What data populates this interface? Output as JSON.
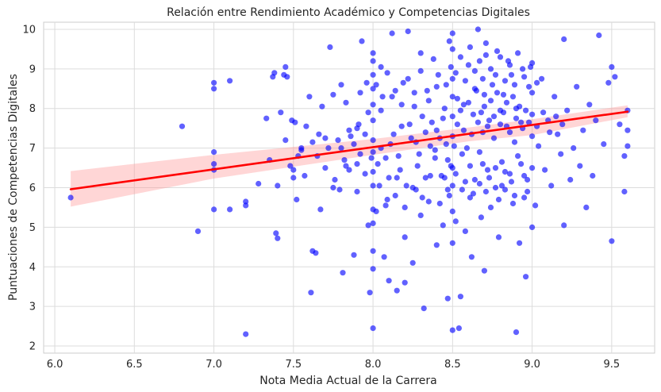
{
  "chart_data": {
    "type": "scatter",
    "title": "Relación entre Rendimiento Académico y Competencias Digitales",
    "xlabel": "Nota Media Actual de la Carrera",
    "ylabel": "Puntuaciones de Competencias Digitales",
    "xlim": [
      5.93,
      9.77
    ],
    "ylim": [
      1.82,
      10.18
    ],
    "xticks": [
      6.0,
      6.5,
      7.0,
      7.5,
      8.0,
      8.5,
      9.0,
      9.5
    ],
    "xtick_labels": [
      "6.0",
      "6.5",
      "7.0",
      "7.5",
      "8.0",
      "8.5",
      "9.0",
      "9.5"
    ],
    "yticks": [
      2,
      3,
      4,
      5,
      6,
      7,
      8,
      9,
      10
    ],
    "ytick_labels": [
      "2",
      "3",
      "4",
      "5",
      "6",
      "7",
      "8",
      "9",
      "10"
    ],
    "grid": true,
    "background": "#ffffff",
    "colors": {
      "points": "#0000ff",
      "regression_line": "#ff0000",
      "confidence_band": "#ff9999",
      "grid": "#dcdcdc",
      "frame": "#cccccc"
    },
    "regression": {
      "x": [
        6.1,
        9.6
      ],
      "y": [
        5.96,
        7.92
      ]
    },
    "confidence_band": {
      "x": [
        6.1,
        7.0,
        8.0,
        8.6,
        9.0,
        9.6
      ],
      "upper": [
        6.42,
        6.83,
        7.23,
        7.52,
        7.73,
        8.08
      ],
      "lower": [
        5.52,
        6.23,
        6.83,
        7.17,
        7.33,
        7.78
      ]
    },
    "points": [
      [
        6.1,
        5.75
      ],
      [
        6.8,
        7.55
      ],
      [
        6.9,
        4.9
      ],
      [
        7.0,
        8.65
      ],
      [
        7.0,
        8.5
      ],
      [
        7.0,
        6.9
      ],
      [
        7.0,
        6.6
      ],
      [
        7.0,
        6.45
      ],
      [
        7.0,
        5.45
      ],
      [
        7.1,
        8.7
      ],
      [
        7.1,
        5.45
      ],
      [
        7.2,
        2.3
      ],
      [
        7.2,
        5.55
      ],
      [
        7.2,
        5.65
      ],
      [
        7.28,
        6.1
      ],
      [
        7.33,
        7.75
      ],
      [
        7.35,
        6.7
      ],
      [
        7.37,
        8.8
      ],
      [
        7.38,
        8.9
      ],
      [
        7.39,
        4.85
      ],
      [
        7.4,
        4.72
      ],
      [
        7.4,
        6.05
      ],
      [
        7.42,
        7.9
      ],
      [
        7.44,
        8.85
      ],
      [
        7.45,
        9.05
      ],
      [
        7.46,
        8.8
      ],
      [
        7.49,
        7.7
      ],
      [
        7.5,
        6.45
      ],
      [
        7.5,
        6.25
      ],
      [
        7.51,
        7.65
      ],
      [
        7.52,
        5.7
      ],
      [
        7.53,
        6.8
      ],
      [
        7.55,
        6.95
      ],
      [
        7.57,
        6.3
      ],
      [
        7.58,
        7.55
      ],
      [
        7.6,
        8.3
      ],
      [
        7.61,
        3.35
      ],
      [
        7.62,
        4.4
      ],
      [
        7.64,
        4.35
      ],
      [
        7.65,
        6.8
      ],
      [
        7.66,
        7.35
      ],
      [
        7.67,
        5.45
      ],
      [
        7.68,
        8.05
      ],
      [
        7.7,
        7.25
      ],
      [
        7.72,
        7.0
      ],
      [
        7.73,
        9.55
      ],
      [
        7.75,
        6.0
      ],
      [
        7.76,
        6.2
      ],
      [
        7.78,
        7.2
      ],
      [
        7.79,
        5.95
      ],
      [
        7.8,
        8.6
      ],
      [
        7.81,
        3.85
      ],
      [
        7.82,
        6.7
      ],
      [
        7.83,
        8.15
      ],
      [
        7.85,
        6.45
      ],
      [
        7.86,
        7.3
      ],
      [
        7.88,
        4.3
      ],
      [
        7.9,
        5.9
      ],
      [
        7.9,
        6.6
      ],
      [
        7.91,
        7.6
      ],
      [
        7.92,
        8.4
      ],
      [
        7.93,
        9.7
      ],
      [
        7.95,
        6.35
      ],
      [
        7.96,
        8.65
      ],
      [
        7.97,
        5.05
      ],
      [
        7.98,
        3.35
      ],
      [
        8.0,
        2.45
      ],
      [
        8.0,
        3.95
      ],
      [
        8.0,
        4.4
      ],
      [
        8.0,
        5.1
      ],
      [
        8.0,
        5.45
      ],
      [
        8.0,
        6.05
      ],
      [
        8.0,
        6.4
      ],
      [
        8.0,
        6.9
      ],
      [
        8.0,
        7.2
      ],
      [
        8.0,
        7.7
      ],
      [
        8.0,
        8.1
      ],
      [
        8.0,
        8.5
      ],
      [
        8.0,
        8.85
      ],
      [
        8.0,
        9.2
      ],
      [
        8.0,
        9.4
      ],
      [
        8.02,
        5.4
      ],
      [
        8.03,
        6.6
      ],
      [
        8.05,
        7.95
      ],
      [
        8.05,
        9.05
      ],
      [
        8.07,
        4.25
      ],
      [
        8.08,
        5.55
      ],
      [
        8.1,
        3.65
      ],
      [
        8.1,
        6.25
      ],
      [
        8.11,
        7.1
      ],
      [
        8.12,
        8.3
      ],
      [
        8.12,
        9.9
      ],
      [
        8.14,
        5.8
      ],
      [
        8.15,
        3.4
      ],
      [
        8.16,
        6.8
      ],
      [
        8.18,
        7.55
      ],
      [
        8.19,
        8.65
      ],
      [
        8.2,
        3.6
      ],
      [
        8.2,
        4.75
      ],
      [
        8.21,
        6.05
      ],
      [
        8.22,
        9.95
      ],
      [
        8.24,
        7.25
      ],
      [
        8.25,
        4.1
      ],
      [
        8.26,
        8.05
      ],
      [
        8.27,
        5.95
      ],
      [
        8.28,
        6.55
      ],
      [
        8.3,
        5.3
      ],
      [
        8.3,
        9.4
      ],
      [
        8.31,
        7.8
      ],
      [
        8.32,
        2.95
      ],
      [
        8.33,
        6.25
      ],
      [
        8.34,
        8.45
      ],
      [
        8.35,
        5.65
      ],
      [
        8.36,
        7.05
      ],
      [
        8.38,
        9.25
      ],
      [
        8.39,
        6.75
      ],
      [
        8.4,
        4.55
      ],
      [
        8.4,
        7.45
      ],
      [
        8.41,
        8.85
      ],
      [
        8.43,
        6.3
      ],
      [
        8.44,
        5.05
      ],
      [
        8.45,
        8.0
      ],
      [
        8.46,
        7.1
      ],
      [
        8.47,
        3.2
      ],
      [
        8.48,
        9.7
      ],
      [
        8.49,
        6.55
      ],
      [
        8.5,
        2.4
      ],
      [
        8.5,
        4.6
      ],
      [
        8.5,
        5.4
      ],
      [
        8.5,
        6.05
      ],
      [
        8.5,
        6.5
      ],
      [
        8.5,
        7.3
      ],
      [
        8.5,
        7.8
      ],
      [
        8.5,
        8.3
      ],
      [
        8.5,
        8.75
      ],
      [
        8.5,
        9.5
      ],
      [
        8.5,
        9.9
      ],
      [
        8.52,
        5.15
      ],
      [
        8.53,
        7.6
      ],
      [
        8.54,
        2.45
      ],
      [
        8.55,
        3.25
      ],
      [
        8.56,
        6.85
      ],
      [
        8.57,
        8.1
      ],
      [
        8.58,
        4.9
      ],
      [
        8.59,
        7.0
      ],
      [
        8.6,
        9.1
      ],
      [
        8.61,
        5.75
      ],
      [
        8.62,
        4.25
      ],
      [
        8.63,
        7.85
      ],
      [
        8.64,
        6.2
      ],
      [
        8.65,
        8.45
      ],
      [
        8.66,
        10.0
      ],
      [
        8.67,
        6.9
      ],
      [
        8.68,
        5.25
      ],
      [
        8.69,
        7.4
      ],
      [
        8.7,
        3.9
      ],
      [
        8.7,
        8.05
      ],
      [
        8.71,
        9.35
      ],
      [
        8.72,
        6.45
      ],
      [
        8.73,
        7.7
      ],
      [
        8.74,
        5.5
      ],
      [
        8.75,
        8.6
      ],
      [
        8.76,
        7.25
      ],
      [
        8.77,
        6.0
      ],
      [
        8.78,
        9.45
      ],
      [
        8.79,
        4.75
      ],
      [
        8.8,
        7.95
      ],
      [
        8.81,
        6.65
      ],
      [
        8.82,
        8.35
      ],
      [
        8.83,
        5.95
      ],
      [
        8.84,
        7.55
      ],
      [
        8.85,
        9.2
      ],
      [
        8.86,
        6.35
      ],
      [
        8.87,
        8.85
      ],
      [
        8.88,
        5.6
      ],
      [
        8.89,
        7.15
      ],
      [
        8.9,
        2.35
      ],
      [
        8.9,
        8.0
      ],
      [
        8.91,
        6.8
      ],
      [
        8.92,
        4.6
      ],
      [
        8.93,
        7.65
      ],
      [
        8.94,
        9.0
      ],
      [
        8.95,
        5.75
      ],
      [
        8.96,
        3.75
      ],
      [
        8.97,
        6.2
      ],
      [
        8.98,
        8.55
      ],
      [
        9.0,
        5.0
      ],
      [
        9.0,
        6.5
      ],
      [
        9.0,
        7.3
      ],
      [
        9.0,
        7.85
      ],
      [
        9.0,
        8.4
      ],
      [
        9.0,
        9.15
      ],
      [
        9.02,
        5.55
      ],
      [
        9.04,
        7.05
      ],
      [
        9.06,
        8.75
      ],
      [
        9.08,
        6.45
      ],
      [
        9.1,
        7.7
      ],
      [
        9.12,
        6.05
      ],
      [
        9.14,
        8.3
      ],
      [
        9.16,
        7.35
      ],
      [
        9.18,
        6.85
      ],
      [
        9.2,
        9.75
      ],
      [
        9.2,
        5.05
      ],
      [
        9.22,
        7.95
      ],
      [
        9.24,
        6.2
      ],
      [
        9.26,
        7.0
      ],
      [
        9.28,
        8.55
      ],
      [
        9.3,
        6.55
      ],
      [
        9.32,
        7.45
      ],
      [
        9.34,
        5.5
      ],
      [
        9.36,
        8.1
      ],
      [
        9.38,
        6.3
      ],
      [
        9.4,
        7.7
      ],
      [
        9.42,
        9.85
      ],
      [
        9.45,
        7.1
      ],
      [
        9.48,
        8.65
      ],
      [
        9.5,
        4.65
      ],
      [
        9.5,
        9.05
      ],
      [
        9.52,
        8.8
      ],
      [
        9.55,
        7.6
      ],
      [
        9.58,
        5.9
      ],
      [
        9.58,
        6.8
      ],
      [
        9.6,
        7.45
      ],
      [
        9.6,
        7.95
      ],
      [
        9.6,
        7.05
      ],
      [
        8.05,
        7.0
      ],
      [
        8.08,
        6.75
      ],
      [
        8.13,
        7.35
      ],
      [
        8.17,
        6.45
      ],
      [
        8.23,
        7.6
      ],
      [
        8.27,
        7.15
      ],
      [
        8.29,
        6.85
      ],
      [
        8.33,
        7.4
      ],
      [
        8.37,
        7.65
      ],
      [
        8.39,
        6.95
      ],
      [
        8.42,
        7.25
      ],
      [
        8.44,
        7.75
      ],
      [
        8.47,
        6.7
      ],
      [
        8.51,
        7.05
      ],
      [
        8.53,
        8.25
      ],
      [
        8.55,
        7.95
      ],
      [
        8.57,
        7.45
      ],
      [
        8.6,
        8.15
      ],
      [
        8.62,
        7.35
      ],
      [
        8.64,
        8.5
      ],
      [
        8.66,
        7.65
      ],
      [
        8.68,
        7.9
      ],
      [
        8.7,
        8.35
      ],
      [
        8.72,
        7.55
      ],
      [
        8.74,
        8.2
      ],
      [
        8.76,
        7.8
      ],
      [
        8.78,
        8.4
      ],
      [
        8.8,
        7.6
      ],
      [
        8.82,
        7.9
      ],
      [
        8.84,
        8.15
      ],
      [
        8.86,
        7.4
      ],
      [
        8.88,
        8.3
      ],
      [
        8.9,
        7.75
      ],
      [
        8.92,
        8.05
      ],
      [
        8.94,
        7.5
      ],
      [
        8.96,
        7.95
      ],
      [
        8.98,
        7.65
      ],
      [
        9.03,
        7.55
      ],
      [
        9.07,
        7.9
      ],
      [
        9.11,
        7.4
      ],
      [
        9.15,
        7.8
      ],
      [
        9.19,
        7.6
      ],
      [
        8.45,
        6.25
      ],
      [
        8.48,
        5.8
      ],
      [
        8.52,
        6.35
      ],
      [
        8.56,
        5.95
      ],
      [
        8.58,
        6.15
      ],
      [
        8.61,
        6.55
      ],
      [
        8.63,
        5.85
      ],
      [
        8.67,
        6.1
      ],
      [
        8.69,
        6.6
      ],
      [
        8.71,
        5.9
      ],
      [
        8.73,
        6.25
      ],
      [
        8.77,
        6.5
      ],
      [
        8.79,
        5.7
      ],
      [
        8.81,
        6.05
      ],
      [
        8.83,
        6.4
      ],
      [
        8.87,
        6.15
      ],
      [
        8.89,
        5.8
      ],
      [
        8.93,
        6.6
      ],
      [
        8.95,
        6.3
      ],
      [
        8.97,
        5.9
      ],
      [
        8.46,
        8.6
      ],
      [
        8.49,
        9.05
      ],
      [
        8.52,
        8.9
      ],
      [
        8.55,
        9.3
      ],
      [
        8.58,
        8.7
      ],
      [
        8.61,
        9.55
      ],
      [
        8.64,
        8.95
      ],
      [
        8.67,
        9.2
      ],
      [
        8.69,
        8.75
      ],
      [
        8.71,
        9.65
      ],
      [
        8.74,
        9.0
      ],
      [
        8.77,
        8.85
      ],
      [
        8.8,
        9.3
      ],
      [
        8.83,
        8.7
      ],
      [
        8.86,
        9.1
      ],
      [
        8.89,
        8.6
      ],
      [
        8.91,
        9.4
      ],
      [
        8.95,
        8.8
      ],
      [
        8.99,
        9.05
      ],
      [
        9.03,
        8.65
      ],
      [
        8.02,
        8.6
      ],
      [
        8.06,
        8.3
      ],
      [
        8.09,
        8.9
      ],
      [
        8.14,
        8.45
      ],
      [
        8.18,
        8.1
      ],
      [
        8.22,
        8.75
      ],
      [
        8.26,
        8.4
      ],
      [
        8.3,
        8.95
      ],
      [
        8.35,
        8.2
      ],
      [
        8.4,
        8.55
      ],
      [
        8.04,
        6.05
      ],
      [
        8.09,
        5.7
      ],
      [
        8.15,
        6.25
      ],
      [
        8.2,
        5.5
      ],
      [
        8.25,
        6.0
      ],
      [
        8.31,
        5.75
      ],
      [
        8.36,
        6.3
      ],
      [
        8.42,
        5.6
      ],
      [
        8.47,
        5.95
      ],
      [
        7.88,
        7.1
      ],
      [
        7.9,
        7.5
      ],
      [
        7.92,
        6.85
      ],
      [
        7.95,
        7.35
      ],
      [
        7.97,
        7.9
      ],
      [
        7.99,
        6.75
      ],
      [
        7.8,
        7.0
      ],
      [
        7.83,
        6.55
      ],
      [
        7.85,
        7.45
      ],
      [
        7.75,
        8.35
      ],
      [
        7.7,
        6.5
      ],
      [
        7.62,
        7.15
      ],
      [
        7.55,
        7.0
      ],
      [
        7.48,
        6.55
      ],
      [
        7.45,
        7.2
      ]
    ]
  }
}
